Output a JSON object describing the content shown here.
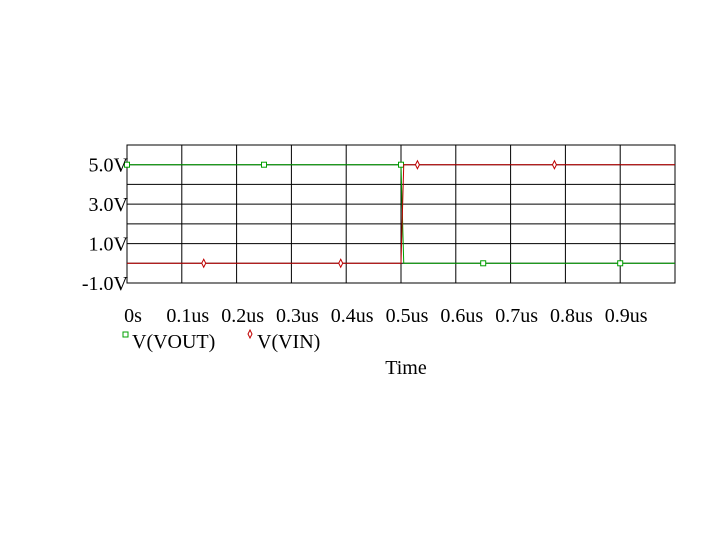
{
  "chart_data": {
    "type": "line",
    "xlabel": "Time",
    "xlim": [
      0,
      1.0
    ],
    "ylim": [
      -1.0,
      6.0
    ],
    "x_ticks": [
      "0s",
      "0.1us",
      "0.2us",
      "0.3us",
      "0.4us",
      "0.5us",
      "0.6us",
      "0.7us",
      "0.8us",
      "0.9us"
    ],
    "y_ticks": [
      "5.0V",
      "3.0V",
      "1.0V",
      "-1.0V"
    ],
    "y_tick_values": [
      5.0,
      3.0,
      1.0,
      -1.0
    ],
    "grid": true,
    "legend_position": "bottom",
    "series": [
      {
        "name": "V(VOUT)",
        "color": "#00a000",
        "marker": "square",
        "x": [
          0,
          0.5,
          0.505,
          1.0
        ],
        "y": [
          5.0,
          5.0,
          0.0,
          0.0
        ],
        "marker_x": [
          0.0,
          0.25,
          0.5,
          0.65,
          0.9
        ]
      },
      {
        "name": "V(VIN)",
        "color": "#c00000",
        "marker": "diamond",
        "x": [
          0,
          0.5,
          0.505,
          1.0
        ],
        "y": [
          0.0,
          0.0,
          5.0,
          5.0
        ],
        "marker_x": [
          0.14,
          0.39,
          0.53,
          0.78
        ]
      }
    ]
  }
}
